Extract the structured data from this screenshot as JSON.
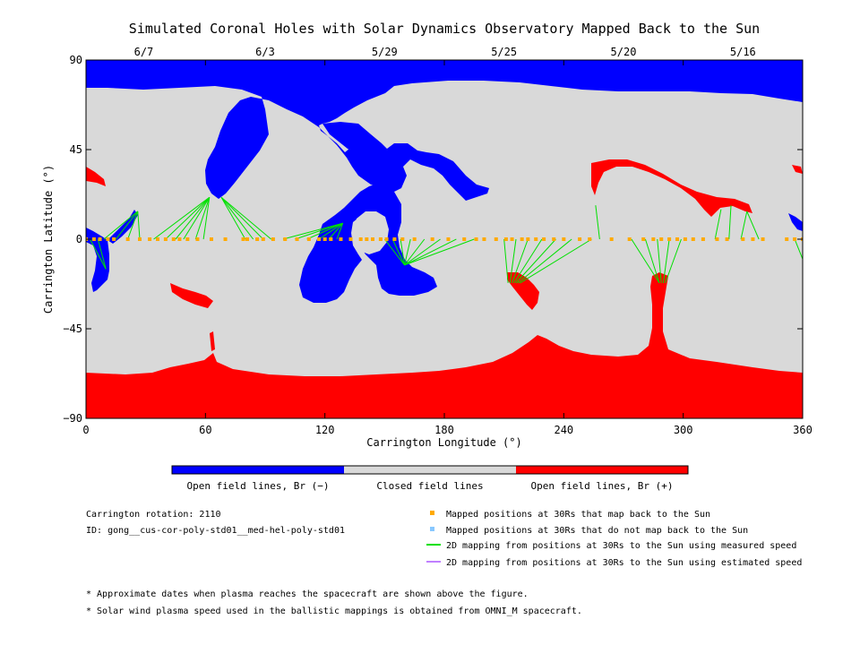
{
  "chart_data": {
    "type": "scatter",
    "title": "Simulated Coronal Holes with Solar Dynamics Observatory Mapped Back to the Sun",
    "xlabel": "Carrington Longitude (°)",
    "ylabel": "Carrington Latitude (°)",
    "xlim": [
      0,
      360
    ],
    "ylim": [
      -90,
      90
    ],
    "xticks": [
      "0",
      "60",
      "120",
      "180",
      "240",
      "300",
      "360"
    ],
    "yticks": [
      "90",
      "45",
      "0",
      "−45",
      "−90"
    ],
    "top_axis_dates": [
      {
        "label": "6/7",
        "x": 29
      },
      {
        "label": "6/3",
        "x": 90
      },
      {
        "label": "5/29",
        "x": 150
      },
      {
        "label": "5/25",
        "x": 210
      },
      {
        "label": "5/20",
        "x": 270
      },
      {
        "label": "5/16",
        "x": 330
      }
    ],
    "colors": {
      "open_negative": "#0000ff",
      "closed": "#d9d9d9",
      "open_positive": "#ff0000",
      "mapped_point": "#ffaa00",
      "unmapped_point": "#88c8ff",
      "measured_line": "#00e000",
      "estimated_line": "#c080ff"
    },
    "colorbar_labels": [
      "Open field lines, Br (−)",
      "Closed field lines",
      "Open field lines, Br (+)"
    ],
    "legend": [
      {
        "label": "Mapped positions at 30Rs that map back to the Sun",
        "kind": "square",
        "color": "#ffaa00"
      },
      {
        "label": "Mapped positions at 30Rs that do not map back to the Sun",
        "kind": "square",
        "color": "#88c8ff"
      },
      {
        "label": "2D mapping from positions at 30Rs to the Sun using measured speed",
        "kind": "line",
        "color": "#00e000"
      },
      {
        "label": "2D mapping from positions at 30Rs to the Sun using estimated speed",
        "kind": "line",
        "color": "#c080ff"
      }
    ],
    "info": [
      "Carrington rotation: 2110",
      "ID: gong__cus-cor-poly-std01__med-hel-poly-std01"
    ],
    "footnotes": [
      "* Approximate dates when plasma reaches the spacecraft are shown above the figure.",
      "* Solar wind plasma speed used in the ballistic mappings is obtained from OMNI_M spacecraft."
    ],
    "mapped_points_lon": [
      0,
      4,
      7,
      11,
      14,
      21,
      27,
      32,
      36,
      40,
      44,
      47,
      51,
      56,
      63,
      70,
      79,
      81,
      86,
      89,
      94,
      100,
      106,
      112,
      117,
      120,
      123,
      128,
      133,
      138,
      141,
      144,
      148,
      151,
      155,
      159,
      165,
      174,
      182,
      190,
      196,
      200,
      206,
      211,
      214,
      219,
      222,
      226,
      230,
      235,
      240,
      248,
      253,
      264,
      273,
      280,
      285,
      289,
      293,
      297,
      301,
      305,
      310,
      317,
      322,
      330,
      335,
      340,
      352,
      356,
      360
    ],
    "mapping_lines": [
      {
        "from_lon": 2,
        "to": [
          10,
          -15
        ]
      },
      {
        "from_lon": 6,
        "to": [
          10,
          -15
        ]
      },
      {
        "from_lon": 9,
        "to": [
          26,
          14
        ]
      },
      {
        "from_lon": 15,
        "to": [
          26,
          14
        ]
      },
      {
        "from_lon": 21,
        "to": [
          26,
          14
        ]
      },
      {
        "from_lon": 27,
        "to": [
          26,
          14
        ]
      },
      {
        "from_lon": 34,
        "to": [
          62,
          21
        ]
      },
      {
        "from_lon": 40,
        "to": [
          62,
          21
        ]
      },
      {
        "from_lon": 45,
        "to": [
          62,
          21
        ]
      },
      {
        "from_lon": 49,
        "to": [
          62,
          21
        ]
      },
      {
        "from_lon": 55,
        "to": [
          62,
          21
        ]
      },
      {
        "from_lon": 59,
        "to": [
          62,
          21
        ]
      },
      {
        "from_lon": 80,
        "to": [
          68,
          21
        ]
      },
      {
        "from_lon": 84,
        "to": [
          68,
          21
        ]
      },
      {
        "from_lon": 89,
        "to": [
          68,
          21
        ]
      },
      {
        "from_lon": 93,
        "to": [
          68,
          21
        ]
      },
      {
        "from_lon": 99,
        "to": [
          129,
          8
        ]
      },
      {
        "from_lon": 105,
        "to": [
          129,
          8
        ]
      },
      {
        "from_lon": 111,
        "to": [
          129,
          8
        ]
      },
      {
        "from_lon": 117,
        "to": [
          129,
          8
        ]
      },
      {
        "from_lon": 122,
        "to": [
          129,
          8
        ]
      },
      {
        "from_lon": 126,
        "to": [
          129,
          8
        ]
      },
      {
        "from_lon": 150,
        "to": [
          160,
          -13
        ]
      },
      {
        "from_lon": 154,
        "to": [
          160,
          -13
        ]
      },
      {
        "from_lon": 158,
        "to": [
          160,
          -13
        ]
      },
      {
        "from_lon": 163,
        "to": [
          160,
          -13
        ]
      },
      {
        "from_lon": 170,
        "to": [
          160,
          -13
        ]
      },
      {
        "from_lon": 178,
        "to": [
          160,
          -13
        ]
      },
      {
        "from_lon": 186,
        "to": [
          160,
          -13
        ]
      },
      {
        "from_lon": 195,
        "to": [
          160,
          -13
        ]
      },
      {
        "from_lon": 210,
        "to": [
          212,
          -22
        ]
      },
      {
        "from_lon": 216,
        "to": [
          213,
          -22
        ]
      },
      {
        "from_lon": 222,
        "to": [
          214,
          -22
        ]
      },
      {
        "from_lon": 229,
        "to": [
          215,
          -22
        ]
      },
      {
        "from_lon": 236,
        "to": [
          216,
          -22
        ]
      },
      {
        "from_lon": 244,
        "to": [
          217,
          -22
        ]
      },
      {
        "from_lon": 254,
        "to": [
          218,
          -22
        ]
      },
      {
        "from_lon": 258,
        "to": [
          256,
          17
        ]
      },
      {
        "from_lon": 274,
        "to": [
          288,
          -22
        ]
      },
      {
        "from_lon": 281,
        "to": [
          288,
          -22
        ]
      },
      {
        "from_lon": 287,
        "to": [
          289,
          -22
        ]
      },
      {
        "from_lon": 293,
        "to": [
          290,
          -22
        ]
      },
      {
        "from_lon": 299,
        "to": [
          291,
          -22
        ]
      },
      {
        "from_lon": 316,
        "to": [
          319,
          15
        ]
      },
      {
        "from_lon": 323,
        "to": [
          324,
          17
        ]
      },
      {
        "from_lon": 329,
        "to": [
          332,
          14
        ]
      },
      {
        "from_lon": 338,
        "to": [
          332,
          14
        ]
      },
      {
        "from_lon": 356,
        "to": [
          360,
          -10
        ]
      }
    ]
  }
}
